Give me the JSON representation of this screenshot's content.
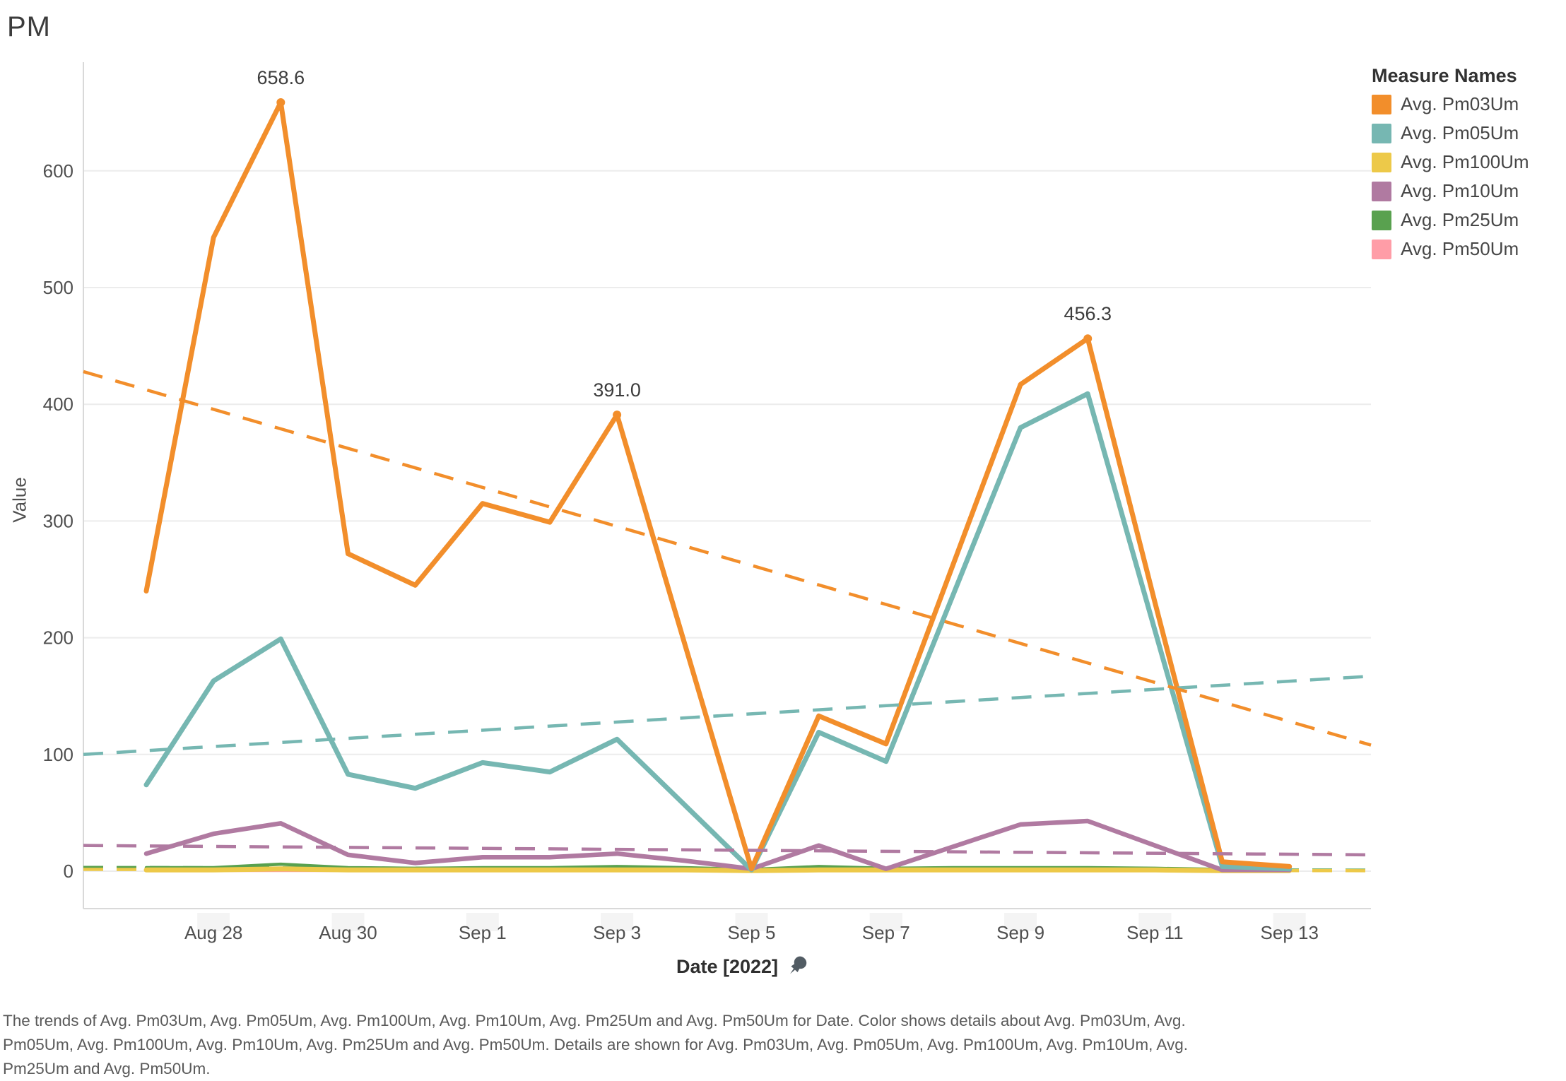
{
  "legend": {
    "title": "Measure Names"
  },
  "axis": {
    "x_title": "Date [2022]",
    "y_title": "Value"
  },
  "icons": {
    "pin": "pushpin-icon"
  },
  "caption": {
    "lines": [
      "The trends of Avg. Pm03Um, Avg. Pm05Um, Avg. Pm100Um, Avg. Pm10Um, Avg. Pm25Um and Avg. Pm50Um for Date.  Color shows details about Avg. Pm03Um, Avg.",
      "Pm05Um, Avg. Pm100Um, Avg. Pm10Um, Avg. Pm25Um and Avg. Pm50Um.  Details are shown for Avg. Pm03Um, Avg. Pm05Um, Avg. Pm100Um, Avg. Pm10Um, Avg.",
      "Pm25Um and Avg. Pm50Um."
    ]
  },
  "chart_data": {
    "type": "line",
    "title": "PM",
    "xlabel": "Date [2022]",
    "ylabel": "Value",
    "x_dates": [
      "Aug 27",
      "Aug 28",
      "Aug 29",
      "Aug 30",
      "Aug 31",
      "Sep 1",
      "Sep 2",
      "Sep 3",
      "Sep 4",
      "Sep 5",
      "Sep 6",
      "Sep 7",
      "Sep 8",
      "Sep 9",
      "Sep 10",
      "Sep 11",
      "Sep 12",
      "Sep 13"
    ],
    "x_tick_indices": [
      1,
      3,
      5,
      7,
      9,
      11,
      13,
      15,
      17
    ],
    "y_ticks": [
      0,
      100,
      200,
      300,
      400,
      500,
      600
    ],
    "ylim": [
      0,
      690
    ],
    "grid": "horizontal-only",
    "legend_position": "top-right",
    "colors": {
      "grid": "#ececec",
      "axis_border": "#d9d9d9",
      "tick_text": "#4f4f4f",
      "annotation_text": "#3c3c3c",
      "tick_shade": "#f4f4f4"
    },
    "series": [
      {
        "name": "Avg. Pm03Um",
        "color": "#F28E2B",
        "width": 7,
        "values": [
          240,
          543,
          658.6,
          272,
          245,
          315,
          299,
          391,
          196,
          2,
          133,
          109,
          263,
          417,
          456.3,
          230,
          8,
          4
        ]
      },
      {
        "name": "Avg. Pm05Um",
        "color": "#76B7B2",
        "width": 7,
        "values": [
          74,
          163,
          199,
          83,
          71,
          93,
          85,
          113,
          57,
          1,
          119,
          94,
          237,
          380,
          409,
          206,
          4,
          2
        ]
      },
      {
        "name": "Avg. Pm100Um",
        "color": "#EDC949",
        "width": 7,
        "values": [
          1,
          1,
          2,
          1,
          1,
          1,
          1,
          1,
          1,
          0.5,
          1,
          1,
          1,
          1,
          1,
          1,
          0.5,
          0.5
        ]
      },
      {
        "name": "Avg. Pm10Um",
        "color": "#B07AA1",
        "width": 6.5,
        "values": [
          15,
          32,
          41,
          14,
          7,
          12,
          12,
          15,
          9,
          2,
          22,
          2,
          21,
          40,
          43,
          22,
          1,
          1
        ]
      },
      {
        "name": "Avg. Pm25Um",
        "color": "#59A14F",
        "width": 4.5,
        "values": [
          3,
          3,
          6,
          3,
          2.5,
          3,
          3,
          4,
          3,
          1.5,
          4,
          2.5,
          3,
          3,
          3,
          2.5,
          1.5,
          1.5
        ]
      },
      {
        "name": "Avg. Pm50Um",
        "color": "#FF9DA7",
        "width": 4,
        "values": [
          0.5,
          0.5,
          0.5,
          0.5,
          0.5,
          0.5,
          0.5,
          0.5,
          0.5,
          0.5,
          0.5,
          0.5,
          0.5,
          0.5,
          0.5,
          0.5,
          0.5,
          0.5
        ]
      }
    ],
    "draw_order": [
      "Avg. Pm50Um",
      "Avg. Pm25Um",
      "Avg. Pm100Um",
      "Avg. Pm10Um",
      "Avg. Pm05Um",
      "Avg. Pm03Um"
    ],
    "trendlines": [
      {
        "series": "Avg. Pm25Um",
        "style": "dashed",
        "layer": "back",
        "from": 3.2,
        "to": 0.8
      },
      {
        "series": "Avg. Pm100Um",
        "style": "dashed",
        "layer": "back",
        "from": 1.5,
        "to": 0.4
      },
      {
        "series": "Avg. Pm10Um",
        "style": "dashed",
        "layer": "front",
        "from": 22,
        "to": 14
      },
      {
        "series": "Avg. Pm05Um",
        "style": "dashed",
        "layer": "front",
        "from": 100,
        "to": 167
      },
      {
        "series": "Avg. Pm03Um",
        "style": "dashed",
        "layer": "front",
        "from": 428,
        "to": 108
      }
    ],
    "annotations": [
      {
        "series": "Avg. Pm03Um",
        "day_index": 2,
        "value": 658.6,
        "label": "658.6"
      },
      {
        "series": "Avg. Pm03Um",
        "day_index": 7,
        "value": 391.0,
        "label": "391.0"
      },
      {
        "series": "Avg. Pm03Um",
        "day_index": 14,
        "value": 456.3,
        "label": "456.3"
      }
    ]
  }
}
